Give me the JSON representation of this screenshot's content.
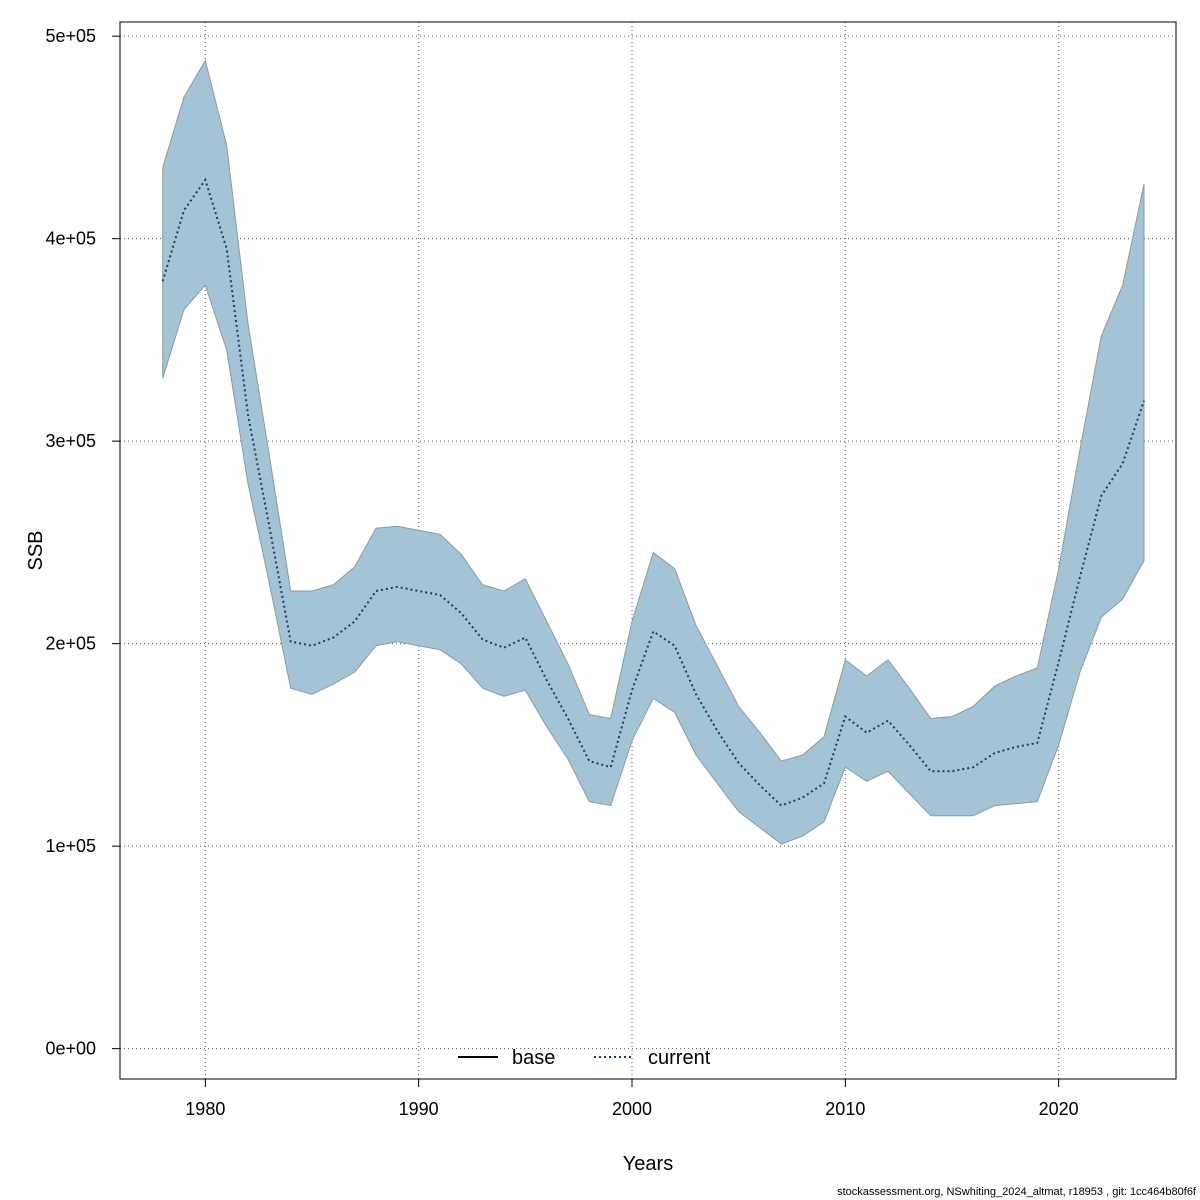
{
  "chart_data": {
    "type": "area",
    "title": "",
    "xlabel": "Years",
    "ylabel": "SSB",
    "xlim": [
      1976,
      2025.5
    ],
    "ylim": [
      -15000,
      507000
    ],
    "x_ticks": [
      1980,
      1990,
      2000,
      2010,
      2020
    ],
    "x_tick_labels": [
      "1980",
      "1990",
      "2000",
      "2010",
      "2020"
    ],
    "y_ticks": [
      0,
      100000,
      200000,
      300000,
      400000,
      500000
    ],
    "y_tick_labels": [
      "0e+00",
      "1e+05",
      "2e+05",
      "3e+05",
      "4e+05",
      "5e+05"
    ],
    "grid": true,
    "legend": {
      "position": "bottom-center",
      "entries": [
        "base",
        "current"
      ]
    },
    "x": [
      1978,
      1979,
      1980,
      1981,
      1982,
      1983,
      1984,
      1985,
      1986,
      1987,
      1988,
      1989,
      1990,
      1991,
      1992,
      1993,
      1994,
      1995,
      1996,
      1997,
      1998,
      1999,
      2000,
      2001,
      2002,
      2003,
      2004,
      2005,
      2006,
      2007,
      2008,
      2009,
      2010,
      2011,
      2012,
      2013,
      2014,
      2015,
      2016,
      2017,
      2018,
      2019,
      2020,
      2021,
      2022,
      2023,
      2024
    ],
    "series": [
      {
        "name": "current",
        "style": "dotted",
        "color": "#1a3a5c",
        "band_color": "#a4c4d6",
        "values": [
          379000,
          414000,
          429000,
          395000,
          313000,
          258000,
          201000,
          199000,
          203000,
          211000,
          226000,
          228000,
          226000,
          224000,
          215000,
          202000,
          198000,
          203000,
          182000,
          163000,
          142000,
          139000,
          177000,
          206000,
          199000,
          175000,
          157000,
          141000,
          130000,
          120000,
          124000,
          131000,
          164000,
          156000,
          162000,
          150000,
          137000,
          137000,
          139000,
          146000,
          149000,
          151000,
          191000,
          233000,
          273000,
          289000,
          320000
        ],
        "lower": [
          331000,
          365000,
          377000,
          345000,
          279000,
          230000,
          178000,
          175000,
          180000,
          186000,
          199000,
          201000,
          199000,
          197000,
          190000,
          178000,
          174000,
          177000,
          159000,
          143000,
          122000,
          120000,
          152000,
          173000,
          166000,
          145000,
          131000,
          117000,
          109000,
          101000,
          105000,
          112000,
          139000,
          132000,
          137000,
          126000,
          115000,
          115000,
          115000,
          120000,
          121000,
          122000,
          150000,
          186000,
          213000,
          222000,
          241000
        ],
        "upper": [
          435000,
          470000,
          488000,
          446000,
          358000,
          293000,
          226000,
          226000,
          229000,
          238000,
          257000,
          258000,
          256000,
          254000,
          244000,
          229000,
          226000,
          232000,
          211000,
          190000,
          165000,
          163000,
          211000,
          245000,
          237000,
          209000,
          189000,
          169000,
          156000,
          142000,
          145000,
          154000,
          192000,
          184000,
          192000,
          178000,
          163000,
          164000,
          169000,
          179000,
          184000,
          188000,
          237000,
          296000,
          352000,
          377000,
          427000
        ]
      }
    ]
  },
  "footer": "stockassessment.org, NSwhiting_2024_altmat, r18953 , git: 1cc464b80f6f"
}
